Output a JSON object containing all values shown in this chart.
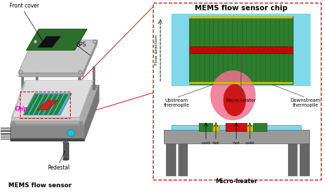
{
  "bg_color": "#ffffff",
  "fig_width": 4.74,
  "fig_height": 2.81,
  "dpi": 100,
  "lp": {
    "label_front_cover": "Front cover",
    "label_sps": "SPS",
    "label_chip": "Chip",
    "label_pedestal": "Pedestal",
    "label_mems": "MEMS flow sensor",
    "cover_top": "#c8c8c8",
    "cover_front": "#aaaaaa",
    "cover_side": "#999999",
    "pcb_color": "#2d6e2d",
    "ic_color": "#111111",
    "base_top": "#aaaaaa",
    "base_front": "#888888",
    "base_side": "#777777",
    "base_dark_front": "#444444",
    "chip_area_color": "#00d4d4",
    "chip_strip_color": "#55aacc",
    "green_sensor": "#228822",
    "red_heater": "#cc2222",
    "feet_color": "#333333",
    "pin_color": "#222222",
    "cyan_circle": "#00ccdd",
    "pedestal_color": "#555555",
    "screw_color": "#bbbbbb"
  },
  "rp": {
    "box_ec": "#cc1111",
    "title": "MEMS flow sensor chip",
    "cyan_bg": "#80d8e8",
    "green_thermopile": "#2e7d2e",
    "green_border": "#1a5a1a",
    "red_heater_bar": "#cc0000",
    "yellow_stripe": "#ccbb00",
    "label_upstream": "Upstream\nthermopile",
    "label_micro": "Micro-heater",
    "label_downstream": "Downstream\nthermopile",
    "label_flow": "Flow direction",
    "flow_arrow_color": "#333333",
    "pink_outer": "#f07090",
    "red_inner": "#cc1111",
    "platform_top": "#999999",
    "platform_front": "#777777",
    "platform_legs": "#666666",
    "cyan_membrane": "#80d8e8",
    "green_pad": "#2e7d2e",
    "yellow_pad": "#ccbb00",
    "red_center": "#cc1111",
    "label_cold": "cold",
    "label_hot": "hot",
    "label_microheater": "Micro-heater",
    "line_color": "#555555"
  }
}
